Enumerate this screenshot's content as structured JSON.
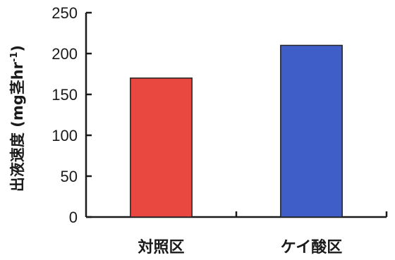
{
  "chart_data": {
    "type": "bar",
    "title": "",
    "xlabel": "",
    "ylabel": "出液速度 (mg茎",
    "ylabel_unit_tail": "hr",
    "ylabel_sup": "-1",
    "ylabel_close": ")",
    "categories": [
      "対照区",
      "ケイ酸区"
    ],
    "values": [
      170,
      210
    ],
    "ylim": [
      0,
      250
    ],
    "yticks": [
      0,
      50,
      100,
      150,
      200,
      250
    ],
    "grid": false,
    "bar_colors": [
      "#e8483f",
      "#3f5ec8"
    ]
  }
}
